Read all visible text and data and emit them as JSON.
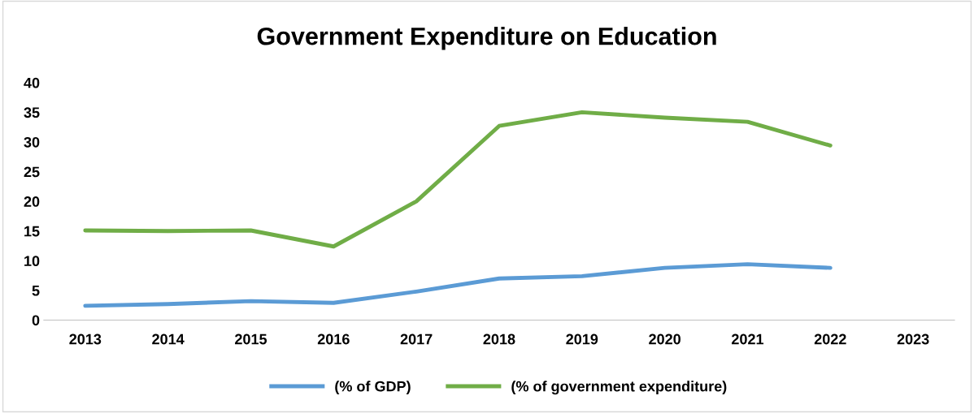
{
  "chart_data": {
    "type": "line",
    "title": "Government Expenditure on Education",
    "categories": [
      "2013",
      "2014",
      "2015",
      "2016",
      "2017",
      "2018",
      "2019",
      "2020",
      "2021",
      "2022",
      "2023"
    ],
    "series": [
      {
        "name": "(% of GDP)",
        "color": "#5b9bd5",
        "values": [
          2.4,
          2.7,
          3.2,
          2.9,
          4.8,
          7.0,
          7.4,
          8.8,
          9.4,
          8.8,
          null
        ]
      },
      {
        "name": "(% of government expenditure)",
        "color": "#70ad47",
        "values": [
          15.1,
          15.0,
          15.1,
          12.4,
          20.0,
          32.7,
          35.0,
          34.1,
          33.4,
          29.4,
          null
        ]
      }
    ],
    "ylim": [
      0,
      40
    ],
    "yticks": [
      0,
      5,
      10,
      15,
      20,
      25,
      30,
      35,
      40
    ],
    "grid": false,
    "legend": "bottom",
    "marker": "none",
    "line_style": "solid"
  }
}
